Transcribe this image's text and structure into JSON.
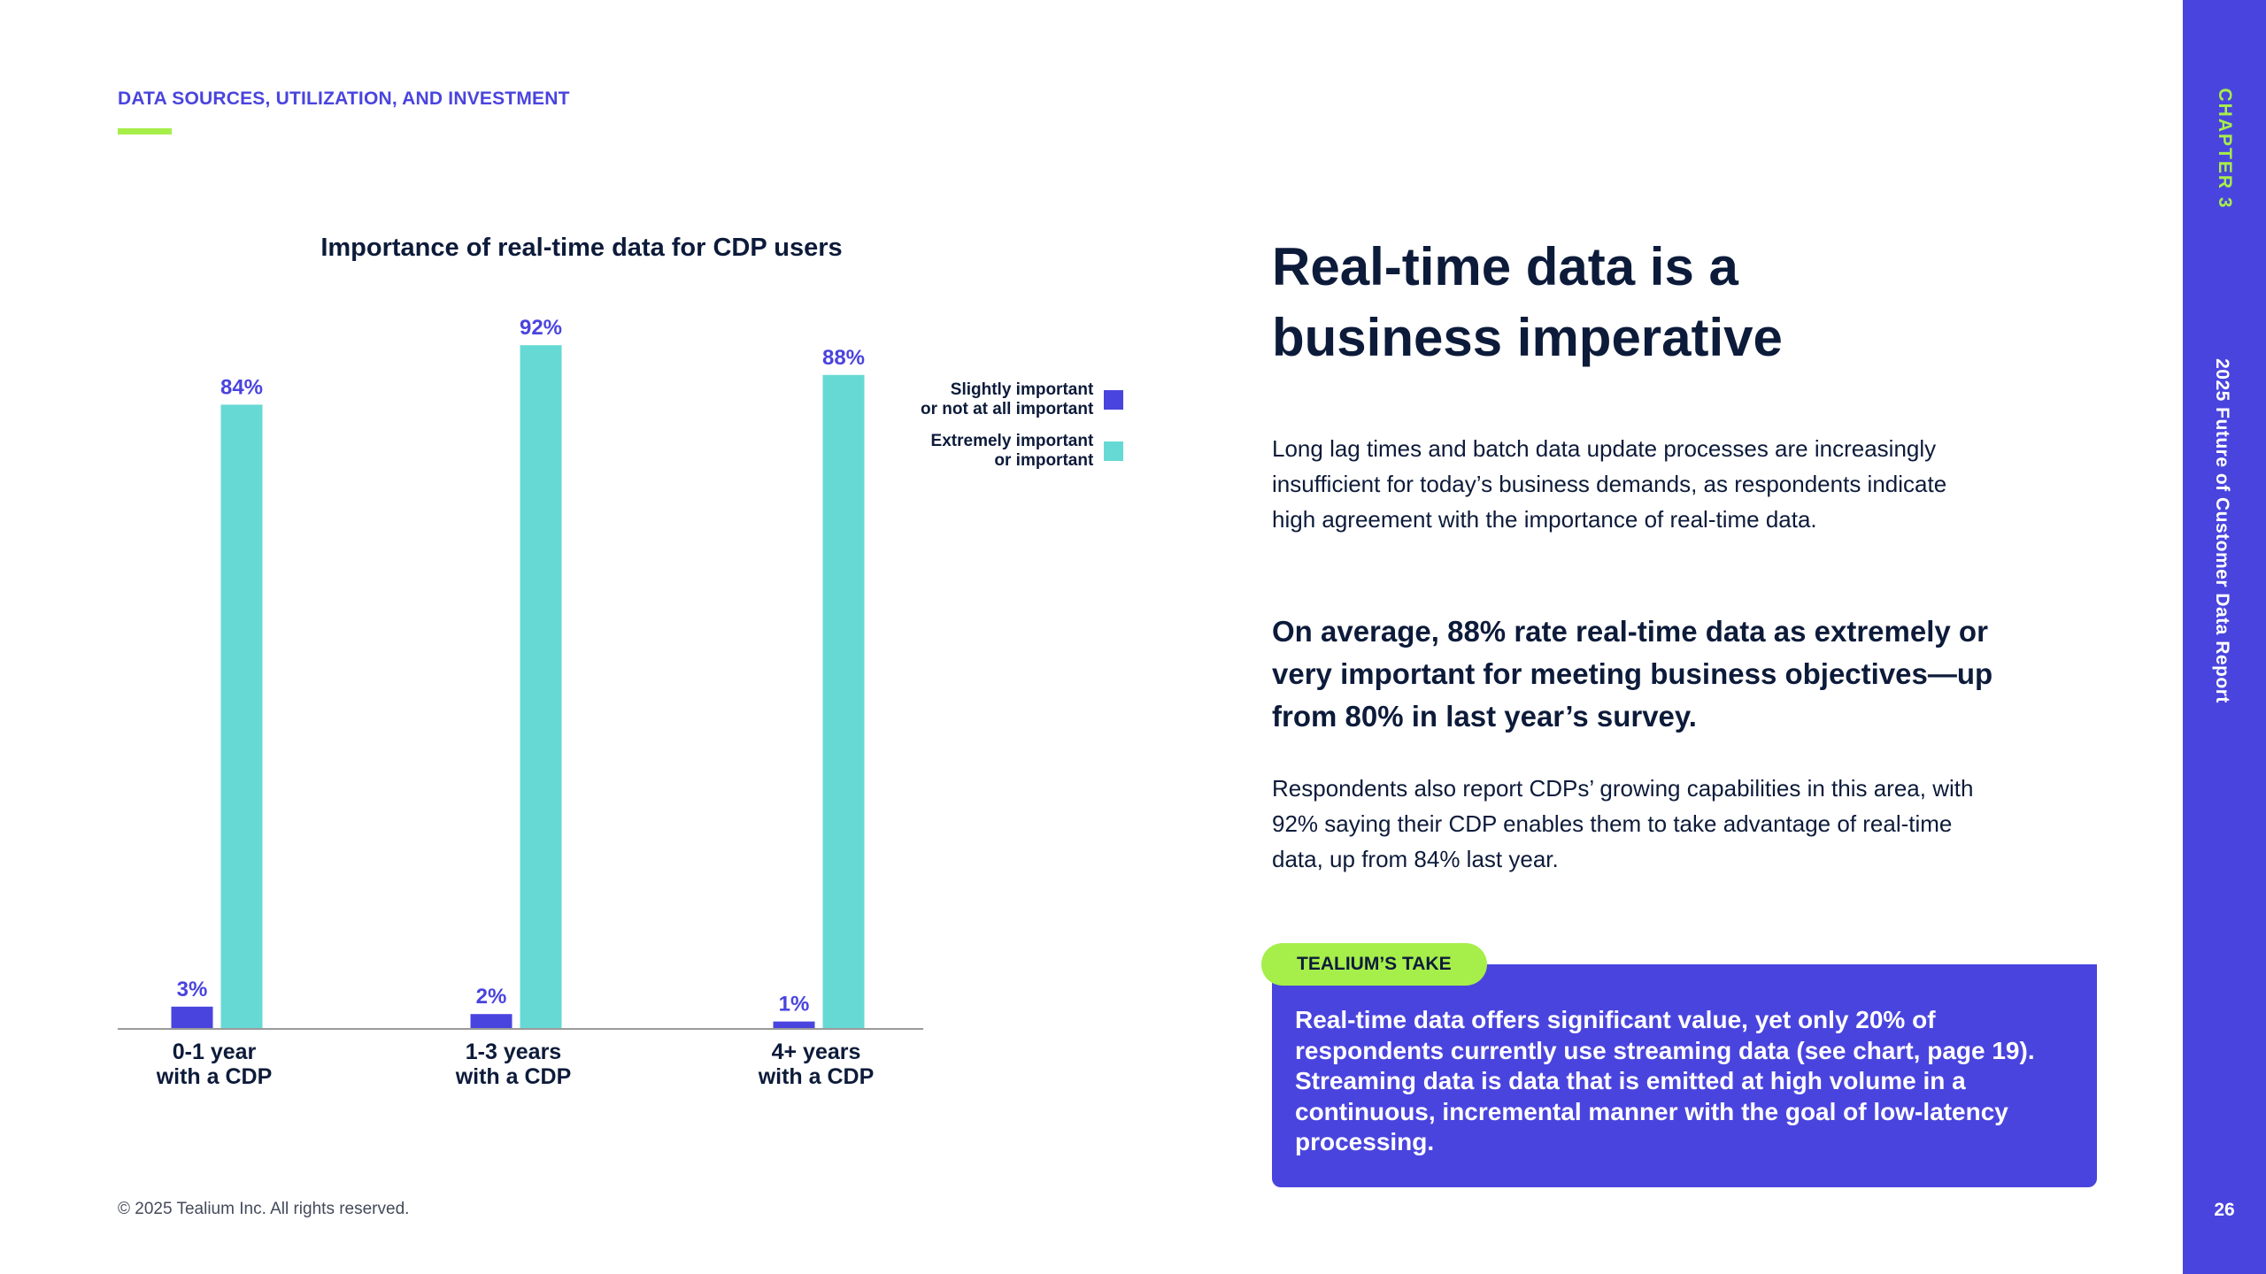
{
  "header": {
    "section_label": "DATA SOURCES, UTILIZATION, AND INVESTMENT"
  },
  "chart_data": {
    "type": "bar",
    "title": "Importance of real-time data for CDP users",
    "categories": [
      [
        "0-1 year",
        "with a CDP"
      ],
      [
        "1-3 years",
        "with a CDP"
      ],
      [
        "4+ years",
        "with a CDP"
      ]
    ],
    "series": [
      {
        "name": "Slightly important\nor not at all important",
        "legend_lines": [
          "Slightly important",
          "or not at all important"
        ],
        "color": "#4a44de",
        "values": [
          3,
          2,
          1
        ],
        "labels": [
          "3%",
          "2%",
          "1%"
        ]
      },
      {
        "name": "Extremely important\nor important",
        "legend_lines": [
          "Extremely important",
          "or important"
        ],
        "color": "#66d9d4",
        "values": [
          84,
          92,
          88
        ],
        "labels": [
          "84%",
          "92%",
          "88%"
        ]
      }
    ],
    "ylim": [
      0,
      100
    ],
    "xlabel": "",
    "ylabel": "",
    "legend_position": "right"
  },
  "article": {
    "headline": "Real-time data is a business imperative",
    "para1": "Long lag times and batch data update processes are increasingly insufficient for today’s business demands, as respondents indicate high agreement with the importance of real-time data.",
    "emphasis": "On average, 88% rate real-time data as extremely or very important for meeting business objectives—up from 80% in last year’s survey.",
    "para2": "Respondents also report CDPs’ growing capabilities in this area, with 92% saying their CDP enables them to take advantage of real-time data, up from 84% last year."
  },
  "take": {
    "tag": "TEALIUM’S TAKE",
    "text": "Real-time data offers significant value, yet only 20% of respondents currently use streaming data (see chart, page 19). Streaming data is data that is emitted at high volume in a continuous, incremental manner with the goal of low-latency processing."
  },
  "footer": {
    "copyright": "© 2025 Tealium Inc. All rights reserved."
  },
  "sidebar": {
    "chapter": "CHAPTER 3",
    "report": "2025 Future of Customer Data Report",
    "page_number": "26"
  },
  "colors": {
    "accent": "#4a44de",
    "teal": "#66d9d4",
    "lime": "#a6ee4a",
    "navy": "#0d1b3a"
  }
}
